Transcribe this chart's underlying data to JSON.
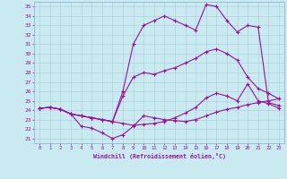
{
  "xlabel": "Windchill (Refroidissement éolien,°C)",
  "xlim": [
    -0.5,
    23.5
  ],
  "ylim": [
    20.5,
    35.5
  ],
  "xticks": [
    0,
    1,
    2,
    3,
    4,
    5,
    6,
    7,
    8,
    9,
    10,
    11,
    12,
    13,
    14,
    15,
    16,
    17,
    18,
    19,
    20,
    21,
    22,
    23
  ],
  "yticks": [
    21,
    22,
    23,
    24,
    25,
    26,
    27,
    28,
    29,
    30,
    31,
    32,
    33,
    34,
    35
  ],
  "bg_color": "#c8eaf0",
  "grid_color": "#a8ccd8",
  "line_color": "#991199",
  "lines": [
    {
      "x": [
        0,
        1,
        2,
        3,
        4,
        5,
        6,
        7,
        8,
        9,
        10,
        11,
        12,
        13,
        14,
        15,
        16,
        17,
        18,
        19,
        20,
        21,
        22,
        23
      ],
      "y": [
        24.2,
        24.3,
        24.1,
        23.6,
        23.4,
        23.2,
        23.0,
        22.8,
        25.5,
        27.5,
        28.0,
        27.8,
        28.2,
        28.5,
        29.0,
        29.5,
        30.2,
        30.5,
        30.0,
        29.3,
        27.5,
        26.3,
        25.8,
        25.2
      ]
    },
    {
      "x": [
        0,
        1,
        2,
        3,
        4,
        5,
        6,
        7,
        8,
        9,
        10,
        11,
        12,
        13,
        14,
        15,
        16,
        17,
        18,
        19,
        20,
        21,
        22,
        23
      ],
      "y": [
        24.2,
        24.3,
        24.1,
        23.6,
        23.4,
        23.2,
        23.0,
        22.8,
        26.0,
        31.0,
        33.0,
        33.5,
        34.0,
        33.5,
        33.0,
        32.5,
        35.2,
        35.0,
        33.5,
        32.3,
        33.0,
        32.8,
        24.8,
        24.5
      ]
    },
    {
      "x": [
        0,
        1,
        2,
        3,
        4,
        5,
        6,
        7,
        8,
        9,
        10,
        11,
        12,
        13,
        14,
        15,
        16,
        17,
        18,
        19,
        20,
        21,
        22,
        23
      ],
      "y": [
        24.2,
        24.3,
        24.1,
        23.6,
        23.4,
        23.2,
        23.0,
        22.8,
        22.6,
        22.4,
        22.5,
        22.6,
        22.8,
        23.2,
        23.7,
        24.3,
        25.3,
        25.8,
        25.5,
        25.0,
        26.8,
        25.0,
        24.7,
        24.2
      ]
    },
    {
      "x": [
        0,
        1,
        2,
        3,
        4,
        5,
        6,
        7,
        8,
        9,
        10,
        11,
        12,
        13,
        14,
        15,
        16,
        17,
        18,
        19,
        20,
        21,
        22,
        23
      ],
      "y": [
        24.2,
        24.3,
        24.1,
        23.6,
        22.3,
        22.1,
        21.6,
        21.0,
        21.4,
        22.3,
        23.4,
        23.2,
        23.0,
        22.9,
        22.8,
        23.0,
        23.4,
        23.8,
        24.1,
        24.3,
        24.6,
        24.8,
        25.0,
        25.2
      ]
    }
  ]
}
